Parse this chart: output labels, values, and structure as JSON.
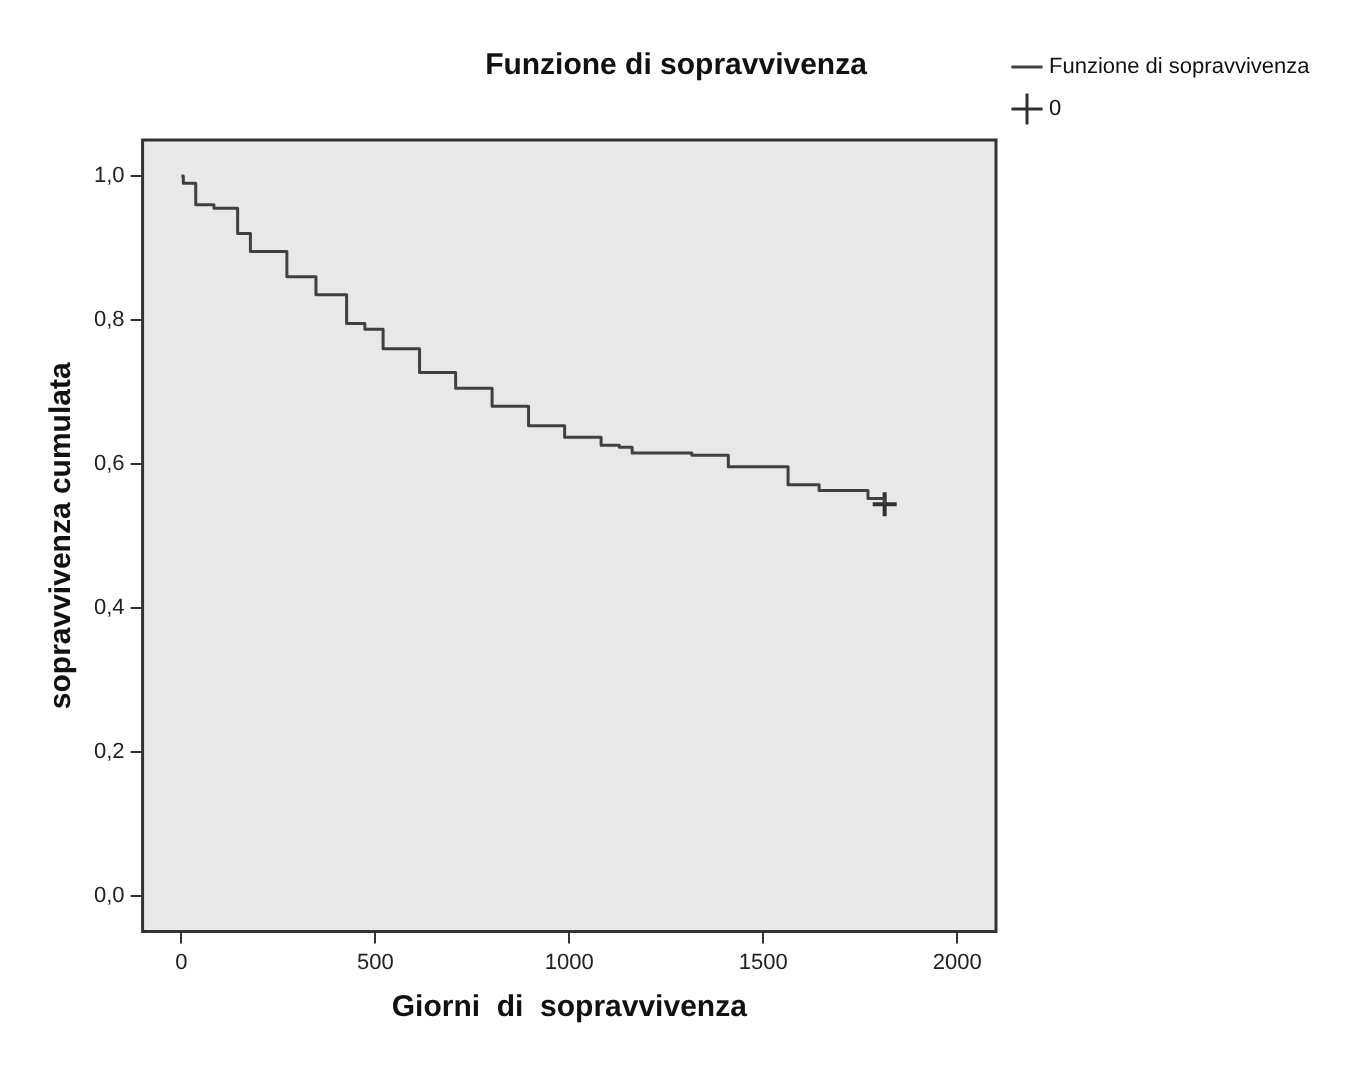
{
  "chart_data": {
    "type": "step",
    "title": "Funzione di sopravvivenza",
    "xlabel": "Giorni  di  sopravvivenza",
    "ylabel": "sopravvivenza cumulata",
    "xlim": [
      -100,
      2100
    ],
    "xticks": [
      0,
      500,
      1000,
      1500,
      2000
    ],
    "ylim": [
      -0.05,
      1.05
    ],
    "yticks": [
      {
        "value": 0,
        "label": "0,0"
      },
      {
        "value": 0.2,
        "label": "0,2"
      },
      {
        "value": 0.4,
        "label": "0,4"
      },
      {
        "value": 0.6,
        "label": "0,6"
      },
      {
        "value": 0.8,
        "label": "0,8"
      },
      {
        "value": 1,
        "label": "1,0"
      }
    ],
    "grid": false,
    "legend": "right",
    "series": [
      {
        "name": "Funzione di sopravvivenza",
        "color": "#404040",
        "marker": "none",
        "x": [
          0,
          5,
          37,
          84,
          145,
          178,
          272,
          347,
          426,
          473,
          520,
          614,
          707,
          801,
          895,
          988,
          1082,
          1129,
          1162,
          1316,
          1410,
          1564,
          1644,
          1770,
          1813
        ],
        "values": [
          1.0,
          0.99,
          0.96,
          0.955,
          0.92,
          0.895,
          0.86,
          0.835,
          0.795,
          0.787,
          0.76,
          0.727,
          0.705,
          0.68,
          0.653,
          0.637,
          0.626,
          0.623,
          0.615,
          0.612,
          0.596,
          0.571,
          0.563,
          0.552,
          0.544
        ]
      },
      {
        "name": "0",
        "type": "scatter",
        "color": "#303030",
        "marker": "cross",
        "x": [
          1813
        ],
        "values": [
          0.544
        ]
      }
    ]
  }
}
